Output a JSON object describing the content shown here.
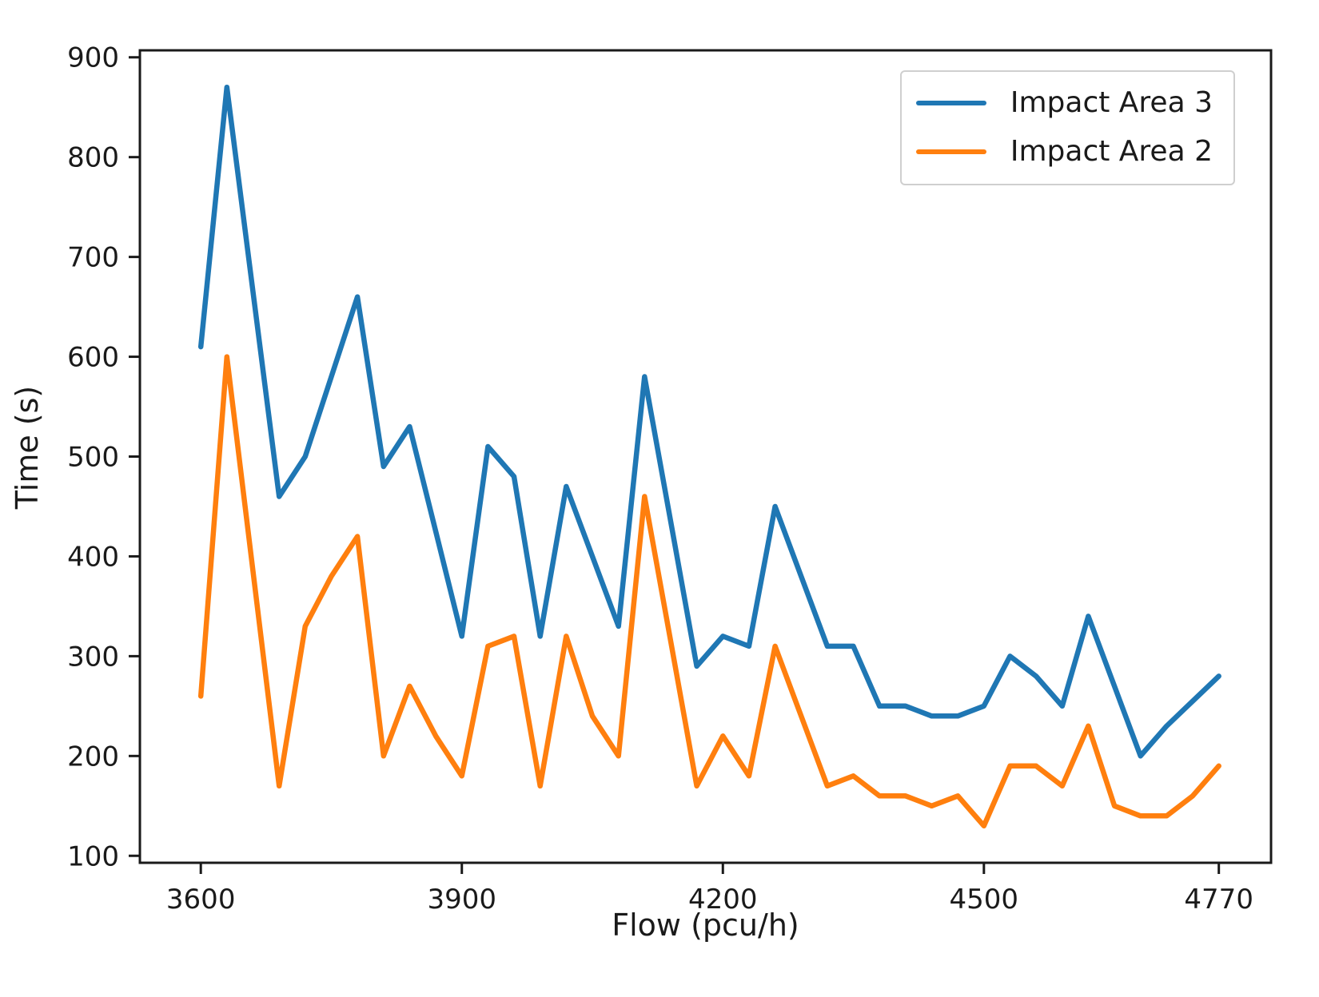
{
  "figure": {
    "background": "#ffffff",
    "axis_color": "#1a1a1a",
    "legend_border_color": "#cfcfcf"
  },
  "chart_data": {
    "type": "line",
    "title": "",
    "xlabel": "Flow (pcu/h)",
    "ylabel": "Time (s)",
    "x": [
      3600,
      3630,
      3660,
      3690,
      3720,
      3750,
      3780,
      3810,
      3840,
      3870,
      3900,
      3930,
      3960,
      3990,
      4020,
      4050,
      4080,
      4110,
      4140,
      4170,
      4200,
      4230,
      4260,
      4290,
      4320,
      4350,
      4380,
      4410,
      4440,
      4470,
      4500,
      4530,
      4560,
      4590,
      4620,
      4650,
      4680,
      4710,
      4740,
      4770
    ],
    "series": [
      {
        "name": "Impact Area 3",
        "color": "#1f77b4",
        "values": [
          610,
          870,
          665,
          460,
          500,
          580,
          660,
          490,
          530,
          425,
          320,
          510,
          480,
          320,
          470,
          400,
          330,
          580,
          435,
          290,
          320,
          310,
          450,
          380,
          310,
          310,
          250,
          250,
          240,
          240,
          250,
          300,
          280,
          250,
          340,
          270,
          200,
          230,
          255,
          280
        ]
      },
      {
        "name": "Impact Area 2",
        "color": "#ff7f0e",
        "values": [
          260,
          600,
          385,
          170,
          330,
          380,
          420,
          200,
          270,
          220,
          180,
          310,
          320,
          170,
          320,
          240,
          200,
          460,
          315,
          170,
          220,
          180,
          310,
          240,
          170,
          180,
          160,
          160,
          150,
          160,
          130,
          190,
          190,
          170,
          230,
          150,
          140,
          140,
          160,
          190
        ]
      }
    ],
    "xlim": [
      3530,
      4830
    ],
    "ylim": [
      93,
      907
    ],
    "xticks": [
      3600,
      3900,
      4200,
      4500,
      4770
    ],
    "yticks": [
      100,
      200,
      300,
      400,
      500,
      600,
      700,
      800,
      900
    ],
    "grid": false,
    "legend_position": "upper right"
  }
}
